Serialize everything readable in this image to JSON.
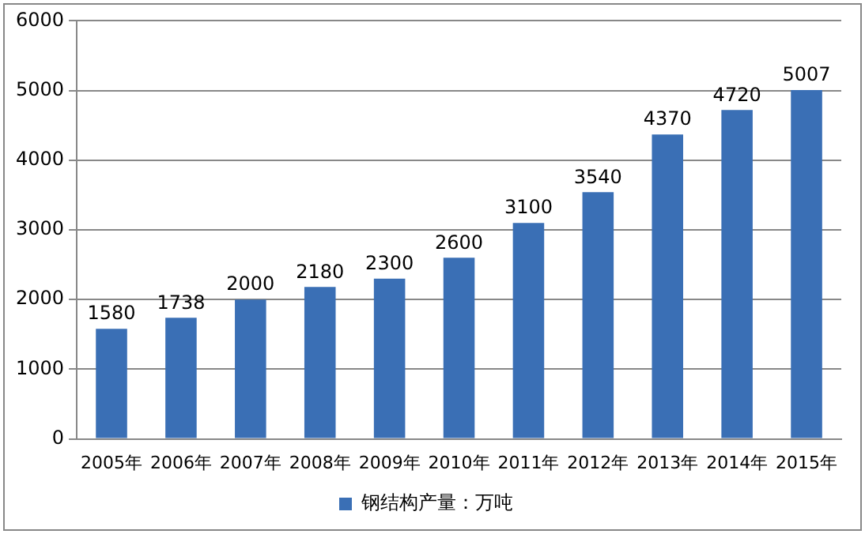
{
  "chart_data": {
    "type": "bar",
    "categories": [
      "2005年",
      "2006年",
      "2007年",
      "2008年",
      "2009年",
      "2010年",
      "2011年",
      "2012年",
      "2013年",
      "2014年",
      "2015年"
    ],
    "series": [
      {
        "name": "钢结构产量：万吨",
        "color": "#3a6fb5",
        "values": [
          1580,
          1738,
          2000,
          2180,
          2300,
          2600,
          3100,
          3540,
          4370,
          4720,
          5007
        ]
      }
    ],
    "ylim": [
      0,
      6000
    ],
    "yticks": [
      0,
      1000,
      2000,
      3000,
      4000,
      5000,
      6000
    ],
    "grid": "y",
    "legend": "bottom",
    "data_labels": true
  }
}
